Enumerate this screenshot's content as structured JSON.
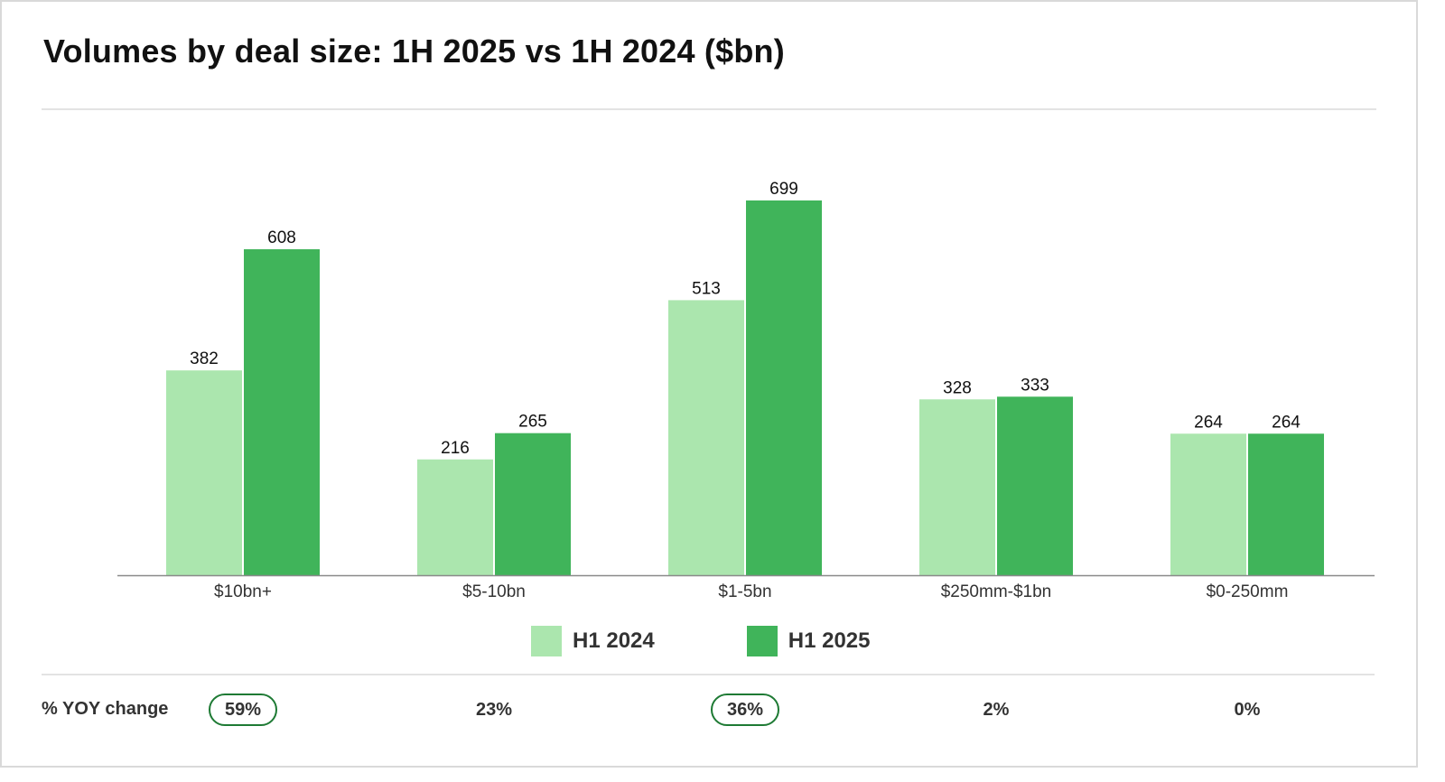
{
  "colors": {
    "h1_2024": "#abe6ae",
    "h1_2025": "#40b45a",
    "axis": "#8a8a8a",
    "highlight_border": "#1e7a34"
  },
  "chart_data": {
    "type": "bar",
    "title": "Volumes by deal size: 1H 2025 vs 1H 2024 ($bn)",
    "categories": [
      "$10bn+",
      "$5-10bn",
      "$1-5bn",
      "$250mm-$1bn",
      "$0-250mm"
    ],
    "series": [
      {
        "name": "H1 2024",
        "values": [
          382,
          216,
          513,
          328,
          264
        ]
      },
      {
        "name": "H1 2025",
        "values": [
          608,
          265,
          699,
          333,
          264
        ]
      }
    ],
    "ylim": [
      0,
      850
    ],
    "grid": false,
    "legend_position": "bottom-center",
    "yoy": {
      "label": "% YOY change",
      "values": [
        "59%",
        "23%",
        "36%",
        "2%",
        "0%"
      ],
      "highlighted": [
        true,
        false,
        true,
        false,
        false
      ]
    }
  }
}
